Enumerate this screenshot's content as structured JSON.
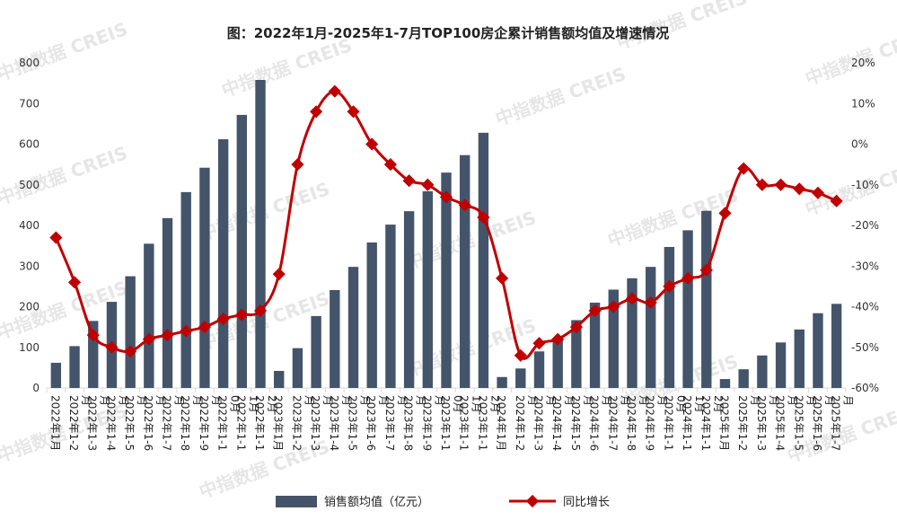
{
  "watermark": "中指数据 CREIS",
  "colors": {
    "bar": "#44546a",
    "line": "#c00000",
    "axis": "#d9d9d9",
    "text": "#333333"
  },
  "chart_data": {
    "type": "bar",
    "title": "图：2022年1月-2025年1-7月TOP100房企累计销售额均值及增速情况",
    "categories": [
      "2022年1月",
      "2022年1-2月",
      "2022年1-3月",
      "2022年1-4月",
      "2022年1-5月",
      "2022年1-6月",
      "2022年1-7月",
      "2022年1-8月",
      "2022年1-9月",
      "2022年1-10月",
      "2022年1-11月",
      "2022年1-12月",
      "2023年1月",
      "2023年1-2月",
      "2023年1-3月",
      "2023年1-4月",
      "2023年1-5月",
      "2023年1-6月",
      "2023年1-7月",
      "2023年1-8月",
      "2023年1-9月",
      "2023年1-10月",
      "2023年1-11月",
      "2023年1-12月",
      "2024年1月",
      "2024年1-2月",
      "2024年1-3月",
      "2024年1-4月",
      "2024年1-5月",
      "2024年1-6月",
      "2024年1-7月",
      "2024年1-8月",
      "2024年1-9月",
      "2024年1-10月",
      "2024年1-11月",
      "2024年1-12月",
      "2025年1月",
      "2025年1-2月",
      "2025年1-3月",
      "2025年1-4月",
      "2025年1-5月",
      "2025年1-6月",
      "2025年1-7月"
    ],
    "series": [
      {
        "name": "销售额均值（亿元）",
        "type": "bar",
        "axis": "left",
        "values": [
          62,
          103,
          165,
          212,
          275,
          355,
          418,
          482,
          542,
          612,
          672,
          758,
          42,
          98,
          177,
          241,
          298,
          358,
          402,
          435,
          484,
          530,
          573,
          628,
          27,
          48,
          90,
          122,
          167,
          210,
          242,
          270,
          298,
          347,
          388,
          436,
          22,
          46,
          80,
          112,
          144,
          184,
          207
        ]
      },
      {
        "name": "同比增长",
        "type": "line",
        "axis": "right",
        "values": [
          -23,
          -34,
          -47,
          -50,
          -51,
          -48,
          -47,
          -46,
          -45,
          -43,
          -42,
          -41,
          -32,
          -5,
          8,
          13,
          8,
          0,
          -5,
          -9,
          -10,
          -13,
          -15,
          -18,
          -33,
          -52,
          -49,
          -48,
          -45,
          -41,
          -40,
          -38,
          -39,
          -35,
          -33,
          -31,
          -17,
          -6,
          -10,
          -10,
          -11,
          -12,
          -14
        ]
      }
    ],
    "y_left": {
      "min": 0,
      "max": 800,
      "ticks": [
        "0",
        "100",
        "200",
        "300",
        "400",
        "500",
        "600",
        "700",
        "800"
      ]
    },
    "y_right": {
      "min": -60,
      "max": 20,
      "ticks": [
        "-60%",
        "-50%",
        "-40%",
        "-30%",
        "-20%",
        "-10%",
        "0%",
        "10%",
        "20%"
      ]
    },
    "legend": {
      "position": "bottom"
    },
    "grid": false
  }
}
